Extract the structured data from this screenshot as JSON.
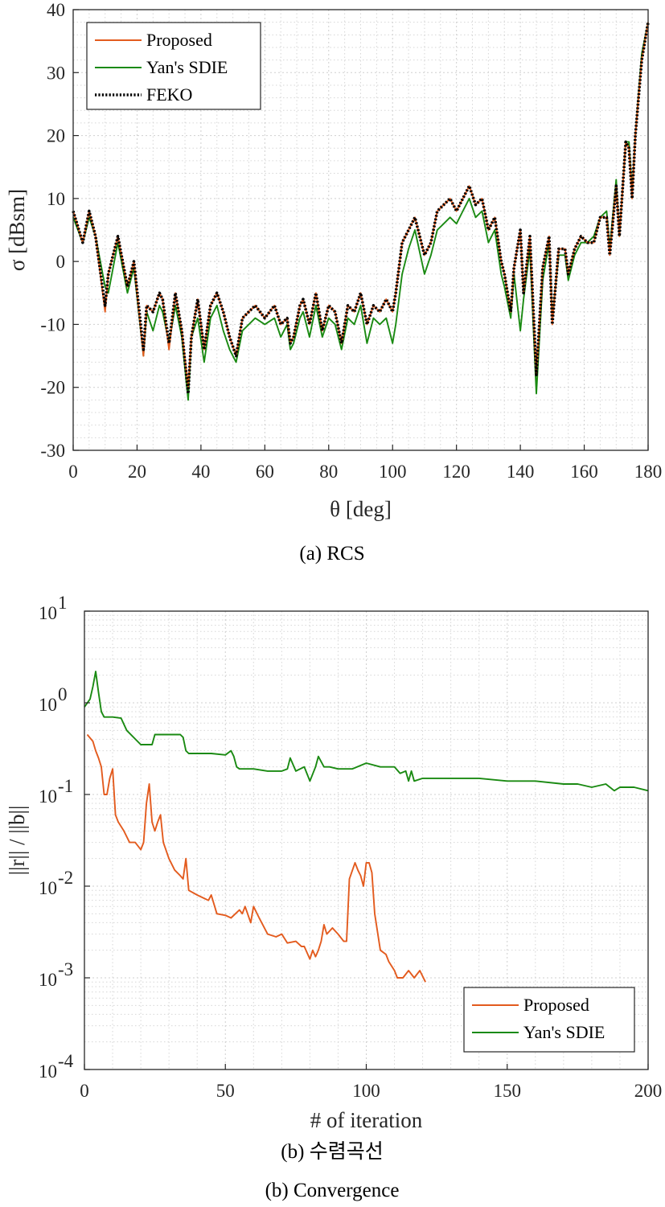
{
  "colors": {
    "proposed": "#e35b1e",
    "sdie": "#1a8a12",
    "feko": "#000000"
  },
  "captions": {
    "a": "(a)  RCS",
    "b_korean": "(b)  수렴곡선",
    "b_english": "(b)  Convergence"
  },
  "chart_data": [
    {
      "type": "line",
      "id": "rcs",
      "xlabel": "θ [deg]",
      "ylabel": "σ [dBsm]",
      "xlim": [
        0,
        180
      ],
      "ylim": [
        -30,
        40
      ],
      "xticks": [
        0,
        20,
        40,
        60,
        80,
        100,
        120,
        140,
        160,
        180
      ],
      "yticks": [
        -30,
        -20,
        -10,
        0,
        10,
        20,
        30,
        40
      ],
      "grid": true,
      "legend_position": "top-left",
      "series": [
        {
          "name": "Proposed",
          "style": "solid",
          "color": "proposed",
          "x": [
            0,
            3,
            5,
            7,
            10,
            11,
            14,
            17,
            19,
            22,
            23,
            25,
            27,
            28,
            30,
            32,
            34,
            36,
            37,
            39,
            41,
            43,
            45,
            47,
            49,
            51,
            53,
            57,
            60,
            63,
            65,
            67,
            68,
            69,
            71,
            72,
            74,
            76,
            78,
            80,
            82,
            84,
            86,
            88,
            90,
            92,
            94,
            96,
            98,
            100,
            101,
            103,
            105,
            107,
            110,
            112,
            114,
            116,
            118,
            120,
            122,
            124,
            126,
            128,
            130,
            132,
            134,
            135,
            137,
            138,
            140,
            141,
            143,
            145,
            147,
            149,
            150,
            152,
            154,
            155,
            157,
            159,
            161,
            163,
            165,
            167,
            168,
            170,
            171,
            173,
            174,
            175,
            176,
            178,
            180
          ],
          "y": [
            8,
            3,
            8,
            4,
            -8,
            -2,
            4,
            -4,
            0,
            -15,
            -7,
            -8,
            -5,
            -6,
            -14,
            -5,
            -11,
            -20,
            -12,
            -6,
            -14,
            -7,
            -5,
            -8,
            -12,
            -15,
            -9,
            -7,
            -9,
            -7,
            -10,
            -9,
            -13,
            -12,
            -7,
            -6,
            -10,
            -5,
            -11,
            -7,
            -8,
            -13,
            -7,
            -8,
            -5,
            -10,
            -7,
            -8,
            -6,
            -8,
            -5,
            3,
            5,
            7,
            1,
            3,
            8,
            9,
            10,
            8,
            10,
            12,
            9,
            10,
            5,
            7,
            0,
            -2,
            -8,
            -1,
            5,
            -5,
            4,
            -18,
            -1,
            4,
            -10,
            2,
            2,
            -2,
            2,
            4,
            3,
            3,
            7,
            7,
            1,
            12,
            4,
            19,
            18,
            10,
            20,
            32,
            38
          ]
        },
        {
          "name": "Yan's SDIE",
          "style": "solid",
          "color": "sdie",
          "x": [
            0,
            3,
            5,
            7,
            10,
            11,
            14,
            17,
            19,
            22,
            23,
            25,
            27,
            28,
            30,
            32,
            34,
            36,
            37,
            39,
            41,
            43,
            45,
            47,
            49,
            51,
            53,
            57,
            60,
            63,
            65,
            67,
            68,
            69,
            71,
            72,
            74,
            76,
            78,
            80,
            82,
            84,
            86,
            88,
            90,
            92,
            94,
            96,
            98,
            100,
            101,
            103,
            105,
            107,
            110,
            112,
            114,
            116,
            118,
            120,
            122,
            124,
            126,
            128,
            130,
            132,
            134,
            135,
            137,
            138,
            140,
            141,
            143,
            145,
            147,
            149,
            150,
            152,
            154,
            155,
            157,
            159,
            161,
            163,
            165,
            167,
            168,
            170,
            171,
            173,
            174,
            175,
            176,
            178,
            180
          ],
          "y": [
            7,
            3,
            7,
            4,
            -4,
            -5,
            3,
            -5,
            -1,
            -15,
            -8,
            -11,
            -7,
            -8,
            -13,
            -7,
            -12,
            -22,
            -12,
            -9,
            -16,
            -9,
            -7,
            -11,
            -14,
            -16,
            -11,
            -9,
            -10,
            -9,
            -12,
            -10,
            -14,
            -13,
            -9,
            -8,
            -12,
            -7,
            -12,
            -9,
            -10,
            -14,
            -9,
            -10,
            -7,
            -13,
            -9,
            -10,
            -9,
            -13,
            -10,
            -2,
            2,
            5,
            -2,
            1,
            5,
            6,
            7,
            6,
            8,
            10,
            7,
            8,
            3,
            5,
            -2,
            -4,
            -9,
            -2,
            -11,
            -6,
            2,
            -21,
            -3,
            3,
            -9,
            1,
            1,
            -3,
            1,
            3,
            3,
            4,
            7,
            8,
            2,
            13,
            4,
            19,
            19,
            11,
            20,
            33,
            38
          ]
        },
        {
          "name": "FEKO",
          "style": "dotted",
          "color": "feko",
          "x": [
            0,
            3,
            5,
            7,
            10,
            11,
            14,
            17,
            19,
            22,
            23,
            25,
            27,
            28,
            30,
            32,
            34,
            36,
            37,
            39,
            41,
            43,
            45,
            47,
            49,
            51,
            53,
            57,
            60,
            63,
            65,
            67,
            68,
            69,
            71,
            72,
            74,
            76,
            78,
            80,
            82,
            84,
            86,
            88,
            90,
            92,
            94,
            96,
            98,
            100,
            101,
            103,
            105,
            107,
            110,
            112,
            114,
            116,
            118,
            120,
            122,
            124,
            126,
            128,
            130,
            132,
            134,
            135,
            137,
            138,
            140,
            141,
            143,
            145,
            147,
            149,
            150,
            152,
            154,
            155,
            157,
            159,
            161,
            163,
            165,
            167,
            168,
            170,
            171,
            173,
            174,
            175,
            176,
            178,
            180
          ],
          "y": [
            8,
            3,
            8,
            4,
            -7,
            -2,
            4,
            -4,
            0,
            -14,
            -7,
            -8,
            -5,
            -6,
            -13,
            -5,
            -11,
            -21,
            -12,
            -6,
            -14,
            -7,
            -5,
            -8,
            -12,
            -15,
            -9,
            -7,
            -9,
            -7,
            -10,
            -9,
            -13,
            -12,
            -7,
            -6,
            -10,
            -5,
            -11,
            -7,
            -8,
            -13,
            -7,
            -8,
            -5,
            -10,
            -7,
            -8,
            -6,
            -8,
            -5,
            3,
            5,
            7,
            1,
            3,
            8,
            9,
            10,
            8,
            10,
            12,
            9,
            10,
            5,
            7,
            0,
            -2,
            -8,
            -1,
            5,
            -5,
            4,
            -18,
            -1,
            4,
            -10,
            2,
            2,
            -2,
            2,
            4,
            3,
            3,
            7,
            7,
            1,
            12,
            4,
            19,
            18,
            10,
            20,
            32,
            38
          ]
        }
      ]
    },
    {
      "type": "line",
      "id": "convergence",
      "xlabel": "# of iteration",
      "ylabel": "||r|| / ||b||",
      "xlim": [
        0,
        200
      ],
      "ylim": [
        0.0001,
        10
      ],
      "yscale": "log",
      "xticks": [
        0,
        50,
        100,
        150,
        200
      ],
      "ytick_exponents": [
        1,
        0,
        -1,
        -2,
        -3,
        -4
      ],
      "grid": true,
      "legend_position": "bottom-right",
      "series": [
        {
          "name": "Proposed",
          "style": "solid",
          "color": "proposed",
          "x": [
            1,
            3,
            4,
            5,
            6,
            7,
            8,
            9,
            10,
            11,
            12,
            14,
            16,
            18,
            20,
            21,
            22,
            23,
            24,
            25,
            26,
            27,
            28,
            30,
            32,
            34,
            35,
            36,
            37,
            40,
            44,
            45,
            47,
            50,
            52,
            55,
            56,
            57,
            59,
            60,
            62,
            65,
            68,
            70,
            72,
            75,
            77,
            78,
            80,
            81,
            82,
            83,
            84,
            85,
            86,
            88,
            90,
            92,
            93,
            94,
            96,
            97,
            98,
            99,
            100,
            101,
            102,
            103,
            105,
            107,
            108,
            110,
            111,
            113,
            115,
            117,
            119,
            121
          ],
          "y": [
            0.45,
            0.38,
            0.3,
            0.25,
            0.2,
            0.1,
            0.1,
            0.15,
            0.19,
            0.06,
            0.05,
            0.04,
            0.03,
            0.03,
            0.025,
            0.03,
            0.08,
            0.13,
            0.05,
            0.04,
            0.05,
            0.06,
            0.03,
            0.02,
            0.015,
            0.013,
            0.012,
            0.02,
            0.009,
            0.008,
            0.007,
            0.008,
            0.005,
            0.0048,
            0.0045,
            0.0055,
            0.005,
            0.006,
            0.004,
            0.006,
            0.0045,
            0.003,
            0.0028,
            0.003,
            0.0024,
            0.0025,
            0.0022,
            0.0022,
            0.0016,
            0.002,
            0.0017,
            0.002,
            0.0025,
            0.0038,
            0.003,
            0.0035,
            0.003,
            0.0025,
            0.0025,
            0.012,
            0.018,
            0.015,
            0.013,
            0.01,
            0.018,
            0.018,
            0.014,
            0.005,
            0.002,
            0.0018,
            0.0015,
            0.0012,
            0.001,
            0.001,
            0.0012,
            0.001,
            0.0012,
            0.0009
          ]
        },
        {
          "name": "Yan's SDIE",
          "style": "solid",
          "color": "sdie",
          "x": [
            0,
            2,
            3,
            4,
            5,
            6,
            7,
            10,
            13,
            15,
            20,
            24,
            25,
            26,
            27,
            30,
            34,
            35,
            36,
            37,
            40,
            45,
            50,
            52,
            53,
            54,
            55,
            58,
            60,
            65,
            70,
            72,
            73,
            75,
            78,
            80,
            82,
            83,
            85,
            87,
            90,
            95,
            100,
            105,
            110,
            112,
            114,
            115,
            116,
            117,
            120,
            130,
            140,
            150,
            160,
            170,
            175,
            180,
            185,
            188,
            190,
            195,
            200
          ],
          "y": [
            0.9,
            1.1,
            1.5,
            2.2,
            1.3,
            0.8,
            0.7,
            0.7,
            0.68,
            0.5,
            0.35,
            0.35,
            0.45,
            0.45,
            0.45,
            0.45,
            0.45,
            0.42,
            0.3,
            0.28,
            0.28,
            0.28,
            0.27,
            0.3,
            0.26,
            0.2,
            0.19,
            0.19,
            0.19,
            0.18,
            0.18,
            0.19,
            0.25,
            0.18,
            0.2,
            0.14,
            0.2,
            0.26,
            0.2,
            0.2,
            0.19,
            0.19,
            0.22,
            0.2,
            0.2,
            0.17,
            0.18,
            0.14,
            0.18,
            0.14,
            0.15,
            0.15,
            0.15,
            0.14,
            0.14,
            0.13,
            0.13,
            0.12,
            0.13,
            0.11,
            0.12,
            0.12,
            0.11
          ]
        }
      ]
    }
  ]
}
